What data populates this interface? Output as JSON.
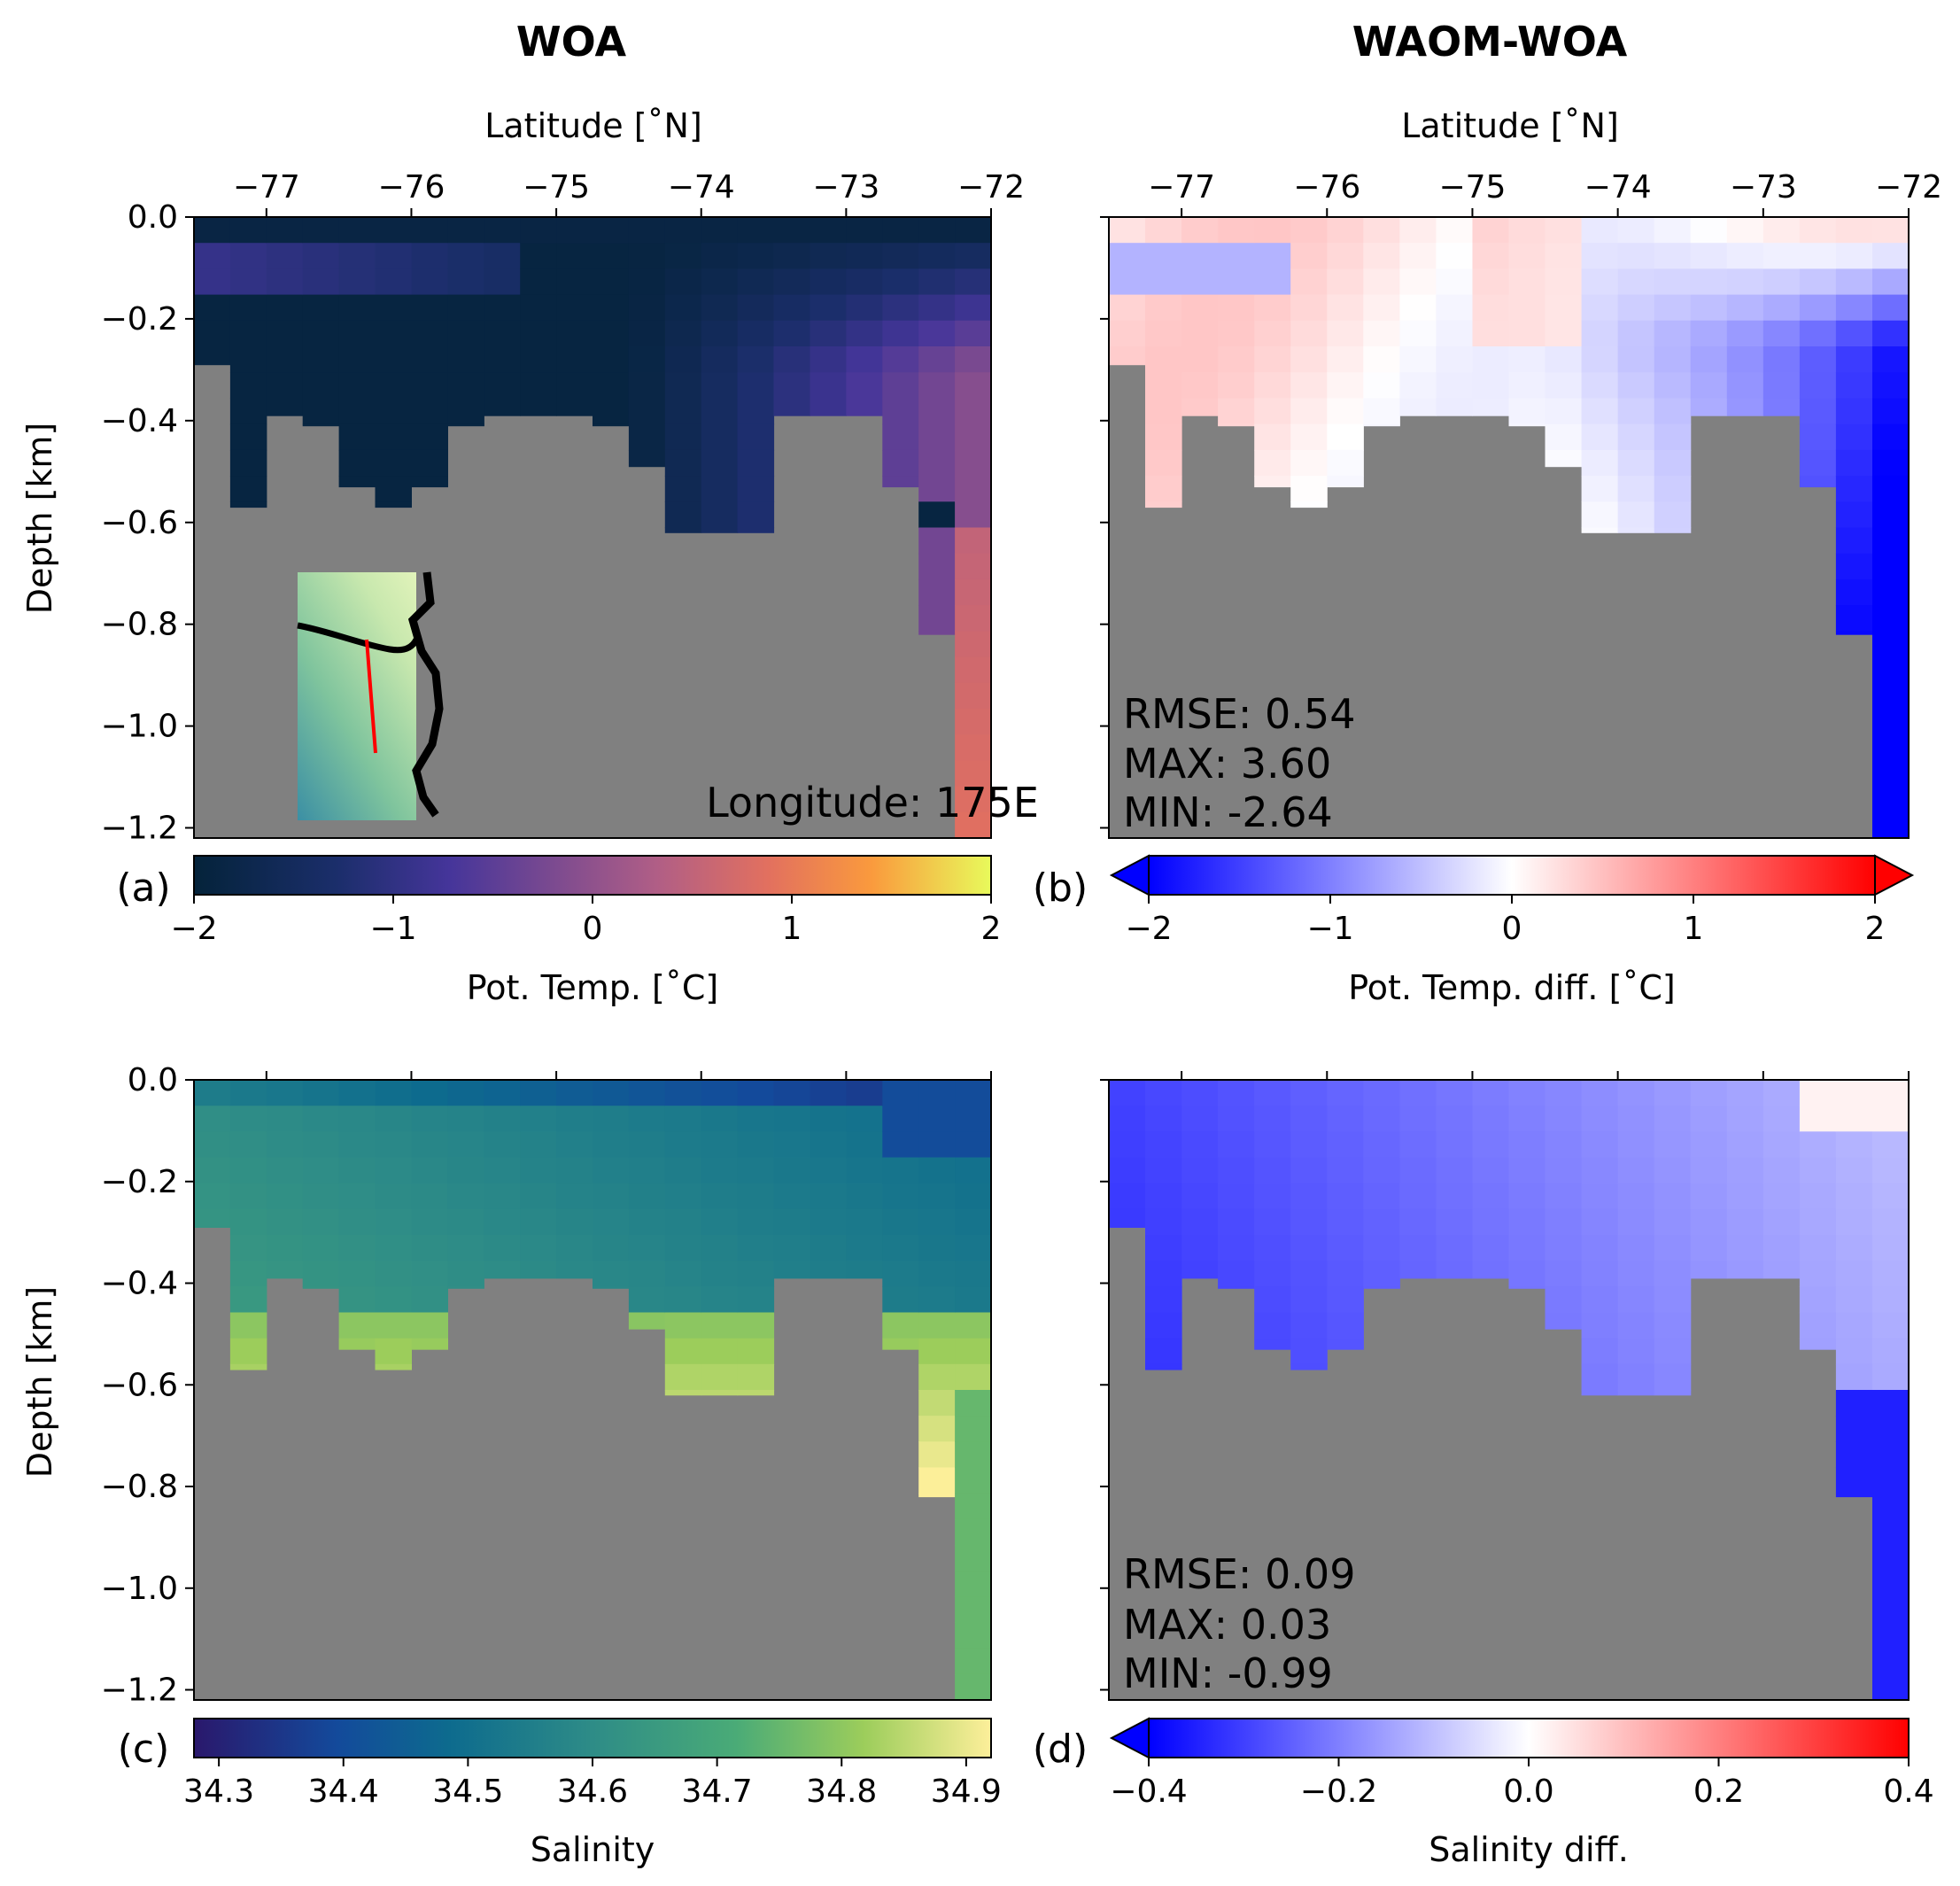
{
  "figure": {
    "column_titles": [
      "WOA",
      "WAOM-WOA"
    ],
    "land_color": "#808080",
    "transect_color": "#ff0000"
  },
  "chart_data": [
    {
      "type": "heatmap",
      "panel": "(a)",
      "xlabel": "Latitude [˚N]",
      "ylabel": "Depth [km]",
      "xlim": [
        -77.5,
        -72
      ],
      "ylim": [
        -1.22,
        0
      ],
      "xticks": [
        "−77",
        "−76",
        "−75",
        "−74",
        "−73",
        "−72"
      ],
      "yticks": [
        "0.0",
        "−0.2",
        "−0.4",
        "−0.6",
        "−0.8",
        "−1.0",
        "−1.2"
      ],
      "annotation": "Longitude: 175E",
      "inset": "map showing transect location (red line) on coastline",
      "colorbar": {
        "label": "Pot. Temp. [˚C]",
        "range": [
          -2,
          2
        ],
        "ticks": [
          "−2",
          "−1",
          "0",
          "1",
          "2"
        ],
        "colormap": "thermal",
        "extend": "neither"
      },
      "bottom_depth_km": [
        0.29,
        0.57,
        0.39,
        0.41,
        0.53,
        0.53,
        0.57,
        0.53,
        0.41,
        0.39,
        0.39,
        0.39,
        0.41,
        0.41,
        0.49,
        0.62,
        0.62,
        0.62,
        0.39,
        0.39,
        0.39,
        0.39,
        0.53,
        0.82,
        1.22
      ],
      "description": "Cold (≈−1.9 °C) water near surface over most of the section; warmer (≈ −0.5 to 0.5 °C) water at depth toward −72°N, up to ≈0.8 °C in deepest cells near −72°N; slightly warmer (≈ −0.9 °C) layer near 0.1 km at −77°N."
    },
    {
      "type": "heatmap",
      "panel": "(b)",
      "xlabel": "Latitude [˚N]",
      "ylabel": "",
      "xlim": [
        -77.5,
        -72
      ],
      "ylim": [
        -1.22,
        0
      ],
      "xticks": [
        "−77",
        "−76",
        "−75",
        "−74",
        "−73",
        "−72"
      ],
      "colorbar": {
        "label": "Pot. Temp. diff. [˚C]",
        "range": [
          -2,
          2
        ],
        "ticks": [
          "−2",
          "−1",
          "0",
          "1",
          "2"
        ],
        "colormap": "bwr",
        "extend": "both"
      },
      "stats": {
        "rmse": "RMSE: 0.54",
        "max": "MAX:  3.60",
        "min": "MIN:  -2.64"
      },
      "description": "Positive (warm) anomalies near surface and in the middle of the section; negative anomalies (to ≈ −2 °C) toward −72°N at depth."
    },
    {
      "type": "heatmap",
      "panel": "(c)",
      "xlabel": "",
      "ylabel": "Depth [km]",
      "xlim": [
        -77.5,
        -72
      ],
      "ylim": [
        -1.22,
        0
      ],
      "yticks": [
        "0.0",
        "−0.2",
        "−0.4",
        "−0.6",
        "−0.8",
        "−1.0",
        "−1.2"
      ],
      "colorbar": {
        "label": "Salinity",
        "range": [
          34.28,
          34.92
        ],
        "ticks": [
          "34.3",
          "34.4",
          "34.5",
          "34.6",
          "34.7",
          "34.8",
          "34.9"
        ],
        "colormap": "haline",
        "extend": "neither"
      },
      "description": "Fresher surface water (≈34.35) toward −72°N; saltier (≈34.7–34.9) water at depth in troughs near −77, −76 and −74°N."
    },
    {
      "type": "heatmap",
      "panel": "(d)",
      "xlabel": "",
      "ylabel": "",
      "xlim": [
        -77.5,
        -72
      ],
      "ylim": [
        -1.22,
        0
      ],
      "colorbar": {
        "label": "Salinity diff.",
        "range": [
          -0.4,
          0.4
        ],
        "ticks": [
          "−0.4",
          "−0.2",
          "0.0",
          "0.2",
          "0.4"
        ],
        "colormap": "bwr",
        "extend": "min"
      },
      "stats": {
        "rmse": "RMSE: 0.09",
        "max": "MAX:  0.03",
        "min": "MIN:  -0.99"
      },
      "description": "Model is fresher than WOA almost everywhere (−0.1 to −0.4), strongest near −77°N and at depth near −72°N; slight positive anomaly at surface near −72°N."
    }
  ]
}
